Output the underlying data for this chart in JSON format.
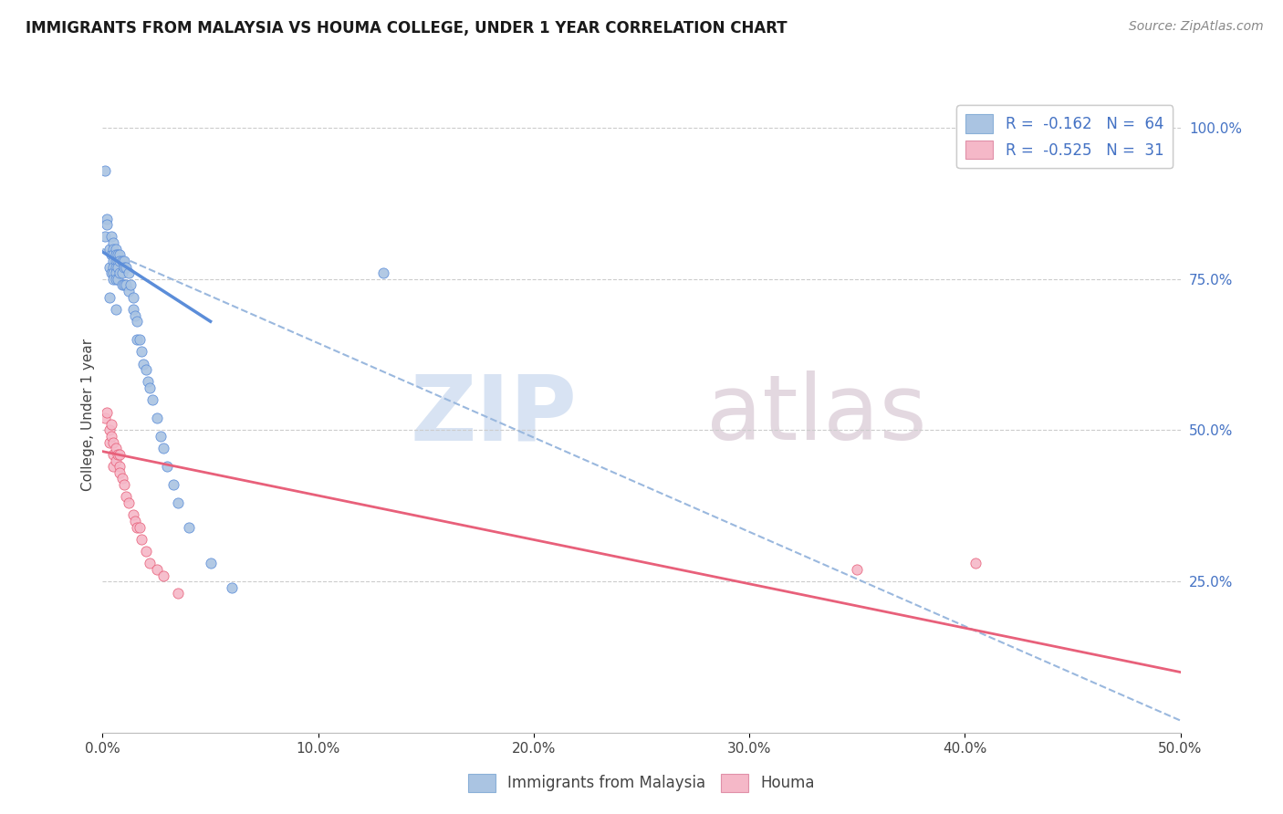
{
  "title": "IMMIGRANTS FROM MALAYSIA VS HOUMA COLLEGE, UNDER 1 YEAR CORRELATION CHART",
  "source": "Source: ZipAtlas.com",
  "ylabel": "College, Under 1 year",
  "xmin": 0.0,
  "xmax": 0.5,
  "ymin": 0.0,
  "ymax": 1.05,
  "x_tick_labels": [
    "0.0%",
    "",
    "",
    "",
    "",
    "10.0%",
    "",
    "",
    "",
    "",
    "20.0%",
    "",
    "",
    "",
    "",
    "30.0%",
    "",
    "",
    "",
    "",
    "40.0%",
    "",
    "",
    "",
    "",
    "50.0%"
  ],
  "x_tick_values": [
    0.0,
    0.02,
    0.04,
    0.06,
    0.08,
    0.1,
    0.12,
    0.14,
    0.16,
    0.18,
    0.2,
    0.22,
    0.24,
    0.26,
    0.28,
    0.3,
    0.32,
    0.34,
    0.36,
    0.38,
    0.4,
    0.42,
    0.44,
    0.46,
    0.48,
    0.5
  ],
  "x_major_tick_labels": [
    "0.0%",
    "10.0%",
    "20.0%",
    "30.0%",
    "40.0%",
    "50.0%"
  ],
  "x_major_tick_values": [
    0.0,
    0.1,
    0.2,
    0.3,
    0.4,
    0.5
  ],
  "y_tick_labels_right": [
    "100.0%",
    "75.0%",
    "50.0%",
    "25.0%"
  ],
  "y_tick_values_right": [
    1.0,
    0.75,
    0.5,
    0.25
  ],
  "legend_R1": "-0.162",
  "legend_N1": "64",
  "legend_R2": "-0.525",
  "legend_N2": "31",
  "blue_color": "#aac4e2",
  "pink_color": "#f5b8c8",
  "blue_line_color": "#5b8dd9",
  "pink_line_color": "#e8607a",
  "dashed_line_color": "#9ab8de",
  "watermark_zip_color": "#c8d8ee",
  "watermark_atlas_color": "#d8c8d4",
  "blue_scatter_x": [
    0.001,
    0.001,
    0.002,
    0.003,
    0.003,
    0.004,
    0.004,
    0.004,
    0.005,
    0.005,
    0.005,
    0.005,
    0.005,
    0.005,
    0.005,
    0.006,
    0.006,
    0.006,
    0.006,
    0.006,
    0.006,
    0.007,
    0.007,
    0.007,
    0.007,
    0.008,
    0.008,
    0.008,
    0.009,
    0.009,
    0.009,
    0.01,
    0.01,
    0.01,
    0.011,
    0.011,
    0.012,
    0.012,
    0.013,
    0.014,
    0.014,
    0.015,
    0.016,
    0.016,
    0.017,
    0.018,
    0.019,
    0.02,
    0.021,
    0.022,
    0.023,
    0.025,
    0.027,
    0.028,
    0.03,
    0.033,
    0.035,
    0.04,
    0.05,
    0.06,
    0.13,
    0.002,
    0.003,
    0.006
  ],
  "blue_scatter_y": [
    0.93,
    0.82,
    0.85,
    0.8,
    0.77,
    0.82,
    0.79,
    0.76,
    0.81,
    0.8,
    0.79,
    0.78,
    0.77,
    0.76,
    0.75,
    0.8,
    0.79,
    0.78,
    0.77,
    0.76,
    0.75,
    0.79,
    0.78,
    0.77,
    0.75,
    0.79,
    0.78,
    0.76,
    0.78,
    0.76,
    0.74,
    0.78,
    0.77,
    0.74,
    0.77,
    0.74,
    0.76,
    0.73,
    0.74,
    0.72,
    0.7,
    0.69,
    0.68,
    0.65,
    0.65,
    0.63,
    0.61,
    0.6,
    0.58,
    0.57,
    0.55,
    0.52,
    0.49,
    0.47,
    0.44,
    0.41,
    0.38,
    0.34,
    0.28,
    0.24,
    0.76,
    0.84,
    0.72,
    0.7
  ],
  "pink_scatter_x": [
    0.001,
    0.002,
    0.003,
    0.003,
    0.004,
    0.004,
    0.005,
    0.005,
    0.005,
    0.006,
    0.006,
    0.007,
    0.008,
    0.008,
    0.008,
    0.009,
    0.01,
    0.011,
    0.012,
    0.014,
    0.015,
    0.016,
    0.017,
    0.018,
    0.02,
    0.022,
    0.025,
    0.028,
    0.035,
    0.35,
    0.405
  ],
  "pink_scatter_y": [
    0.52,
    0.53,
    0.5,
    0.48,
    0.51,
    0.49,
    0.48,
    0.46,
    0.44,
    0.47,
    0.45,
    0.46,
    0.46,
    0.44,
    0.43,
    0.42,
    0.41,
    0.39,
    0.38,
    0.36,
    0.35,
    0.34,
    0.34,
    0.32,
    0.3,
    0.28,
    0.27,
    0.26,
    0.23,
    0.27,
    0.28
  ],
  "blue_trendline_x": [
    0.0,
    0.05
  ],
  "blue_trendline_y": [
    0.795,
    0.68
  ],
  "dashed_trendline_x": [
    0.0,
    0.5
  ],
  "dashed_trendline_y": [
    0.8,
    0.02
  ],
  "pink_trendline_x": [
    0.0,
    0.5
  ],
  "pink_trendline_y": [
    0.465,
    0.1
  ],
  "background_color": "#ffffff",
  "grid_color": "#cccccc"
}
